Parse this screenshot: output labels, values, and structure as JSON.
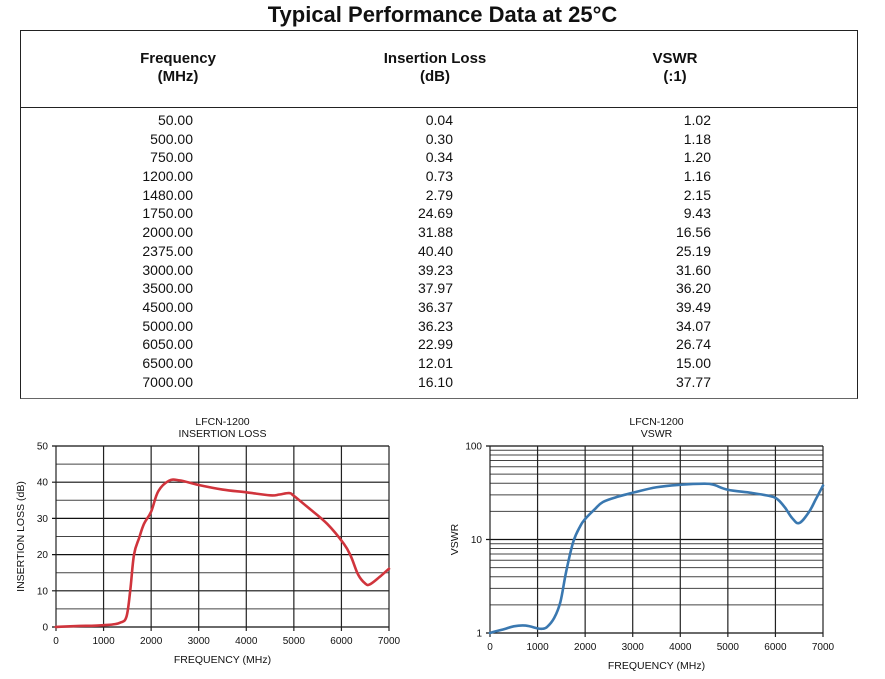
{
  "page_title": "Typical Performance Data at 25°C",
  "table": {
    "headers": [
      {
        "line1": "Frequency",
        "line2": "(MHz)"
      },
      {
        "line1": "Insertion Loss",
        "line2": "(dB)"
      },
      {
        "line1": "VSWR",
        "line2": "(:1)"
      }
    ],
    "rows": [
      [
        "50.00",
        "0.04",
        "1.02"
      ],
      [
        "500.00",
        "0.30",
        "1.18"
      ],
      [
        "750.00",
        "0.34",
        "1.20"
      ],
      [
        "1200.00",
        "0.73",
        "1.16"
      ],
      [
        "1480.00",
        "2.79",
        "2.15"
      ],
      [
        "1750.00",
        "24.69",
        "9.43"
      ],
      [
        "2000.00",
        "31.88",
        "16.56"
      ],
      [
        "2375.00",
        "40.40",
        "25.19"
      ],
      [
        "3000.00",
        "39.23",
        "31.60"
      ],
      [
        "3500.00",
        "37.97",
        "36.20"
      ],
      [
        "4500.00",
        "36.37",
        "39.49"
      ],
      [
        "5000.00",
        "36.23",
        "34.07"
      ],
      [
        "6050.00",
        "22.99",
        "26.74"
      ],
      [
        "6500.00",
        "12.01",
        "15.00"
      ],
      [
        "7000.00",
        "16.10",
        "37.77"
      ]
    ]
  },
  "chart_data": [
    {
      "type": "line",
      "title": "LFCN-1200",
      "subtitle": "INSERTION LOSS",
      "xlabel": "FREQUENCY (MHz)",
      "ylabel": "INSERTION LOSS (dB)",
      "xlim": [
        0,
        7000
      ],
      "ylim": [
        0,
        50
      ],
      "yscale": "linear",
      "xticks": [
        0,
        1000,
        2000,
        3000,
        4000,
        5000,
        6000,
        7000
      ],
      "yticks": [
        0,
        10,
        20,
        30,
        40,
        50
      ],
      "yminor": [
        5,
        15,
        25,
        35,
        45
      ],
      "grid": true,
      "color": "#d0343c",
      "series": [
        {
          "name": "Insertion Loss",
          "x": [
            0,
            50,
            500,
            750,
            1000,
            1200,
            1350,
            1480,
            1560,
            1640,
            1750,
            1850,
            2000,
            2150,
            2375,
            2600,
            3000,
            3500,
            4000,
            4500,
            4700,
            4900,
            5000,
            5300,
            5700,
            6050,
            6200,
            6350,
            6500,
            6600,
            6800,
            7000
          ],
          "y": [
            0,
            0.04,
            0.3,
            0.34,
            0.5,
            0.73,
            1.2,
            2.79,
            10,
            20,
            24.69,
            28.5,
            31.88,
            37.5,
            40.4,
            40.5,
            39.23,
            37.97,
            37.2,
            36.37,
            36.6,
            37.0,
            36.23,
            33.0,
            28.5,
            22.99,
            19.5,
            14.5,
            12.01,
            11.8,
            13.8,
            16.1
          ]
        }
      ]
    },
    {
      "type": "line",
      "title": "LFCN-1200",
      "subtitle": "VSWR",
      "xlabel": "FREQUENCY (MHz)",
      "ylabel": "VSWR",
      "xlim": [
        0,
        7000
      ],
      "ylim": [
        1,
        100
      ],
      "yscale": "log",
      "xticks": [
        0,
        1000,
        2000,
        3000,
        4000,
        5000,
        6000,
        7000
      ],
      "yticks": [
        1,
        10,
        100
      ],
      "yminor": [
        2,
        3,
        4,
        5,
        6,
        7,
        8,
        9,
        20,
        30,
        40,
        50,
        60,
        70,
        80,
        90
      ],
      "grid": true,
      "color": "#3a78b0",
      "series": [
        {
          "name": "VSWR",
          "x": [
            0,
            50,
            300,
            500,
            750,
            1000,
            1100,
            1200,
            1350,
            1480,
            1600,
            1750,
            1900,
            2000,
            2200,
            2375,
            2700,
            3000,
            3500,
            4000,
            4500,
            4700,
            5000,
            5500,
            5900,
            6050,
            6200,
            6350,
            6500,
            6700,
            6850,
            7000
          ],
          "y": [
            1.0,
            1.02,
            1.1,
            1.18,
            1.2,
            1.12,
            1.11,
            1.16,
            1.45,
            2.15,
            4.5,
            9.43,
            14.0,
            16.56,
            21.0,
            25.19,
            28.8,
            31.6,
            36.2,
            38.5,
            39.49,
            38.5,
            34.07,
            31.5,
            29.0,
            26.74,
            22.0,
            17.0,
            15.0,
            19.5,
            27.0,
            37.77
          ]
        }
      ]
    }
  ]
}
